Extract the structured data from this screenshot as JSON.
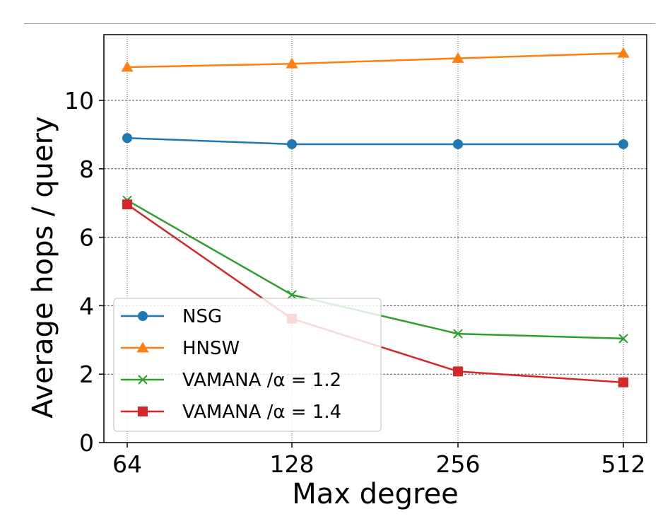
{
  "chart_data": {
    "type": "line",
    "xlabel": "Max degree",
    "ylabel": "Average  hops / query",
    "x_tick_labels": [
      "64",
      "128",
      "256",
      "512"
    ],
    "x": [
      64,
      128,
      256,
      512
    ],
    "x_scale": "log2",
    "y_ticks": [
      0,
      2,
      4,
      6,
      8,
      10
    ],
    "y_tick_labels": [
      "0",
      "2",
      "4",
      "6",
      "8",
      "10"
    ],
    "ylim": [
      0,
      11.6
    ],
    "grid": true,
    "legend_position": "lower-left",
    "series": [
      {
        "name": "NSG",
        "color": "#1f77b4",
        "marker": "circle",
        "values": [
          8.9,
          8.72,
          8.72,
          8.72
        ]
      },
      {
        "name": "HNSW",
        "color": "#ff7f0e",
        "marker": "triangle",
        "values": [
          10.97,
          11.07,
          11.23,
          11.38
        ]
      },
      {
        "name": "VAMANA /α = 1.2",
        "color": "#2ca02c",
        "marker": "x",
        "values": [
          7.08,
          4.32,
          3.18,
          3.04
        ]
      },
      {
        "name": "VAMANA /α = 1.4",
        "color": "#d62728",
        "marker": "square",
        "values": [
          6.96,
          3.62,
          2.08,
          1.76
        ]
      }
    ]
  }
}
